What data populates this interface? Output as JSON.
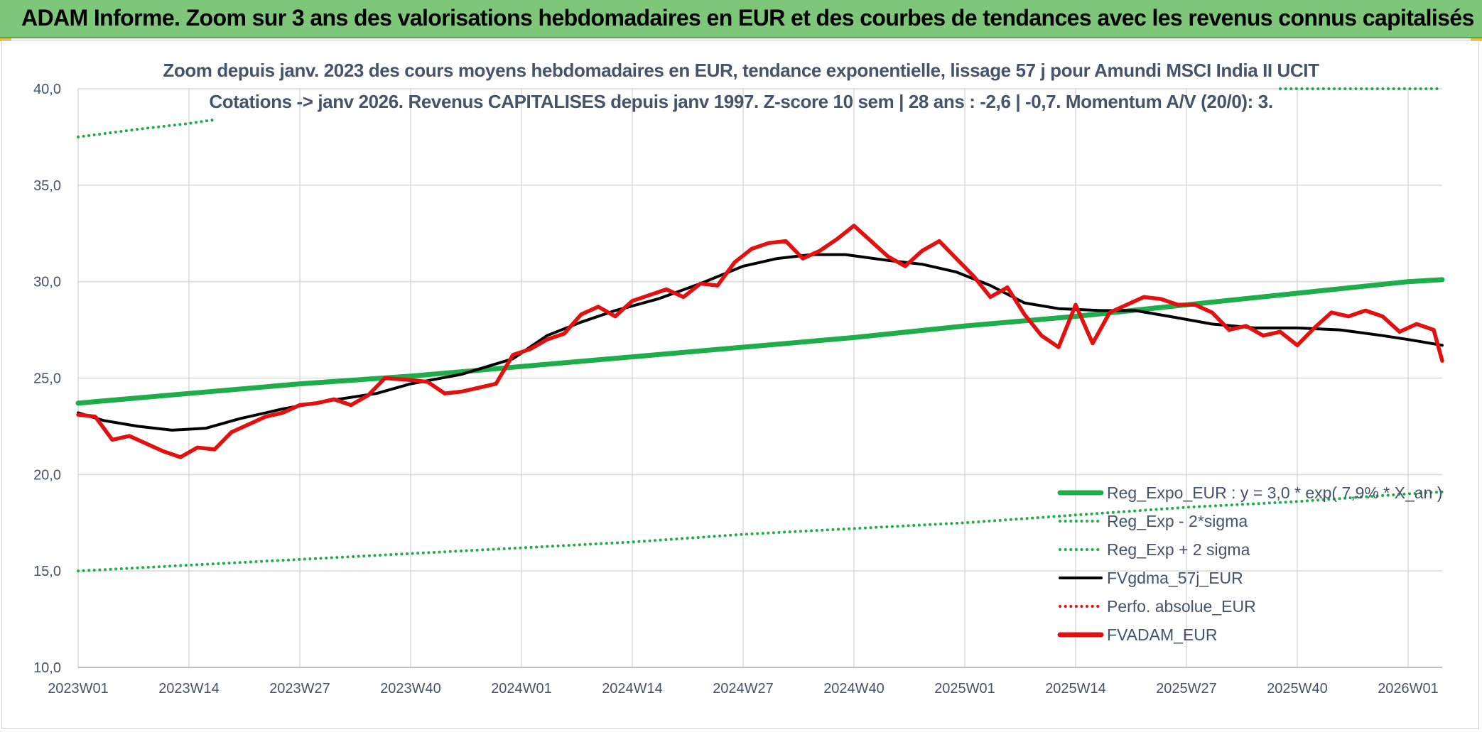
{
  "header": {
    "title": "ADAM Informe. Zoom sur 3 ans des valorisations hebdomadaires en EUR et des courbes de tendances avec les revenus connus capitalisés"
  },
  "colors": {
    "header_bg": "#7dc67a",
    "reg_expo": "#1fad4b",
    "sigma": "#1fad4b",
    "moving_avg": "#000000",
    "perfo": "#e31010",
    "price": "#e31010",
    "axis_text": "#44546a",
    "grid": "#d9d9d9"
  },
  "chart_data": {
    "type": "line",
    "title": "Zoom depuis janv. 2023 des cours moyens hebdomadaires en EUR, tendance exponentielle, lissage 57 j pour Amundi MSCI India II UCIT",
    "subtitle": "Cotations -> janv 2026. Revenus CAPITALISES depuis janv 1997. Z-score 10 sem | 28 ans : -2,6 | -0,7. Momentum A/V (20/0): 3.",
    "ylim": [
      10,
      40
    ],
    "y_ticks": [
      "10,0",
      "15,0",
      "20,0",
      "25,0",
      "30,0",
      "35,0",
      "40,0"
    ],
    "x_ticks": [
      "2023W01",
      "2023W14",
      "2023W27",
      "2023W40",
      "2024W01",
      "2024W14",
      "2024W27",
      "2024W40",
      "2025W01",
      "2025W14",
      "2025W27",
      "2025W40",
      "2026W01"
    ],
    "grid": true,
    "legend_position": "bottom-right",
    "legend": [
      {
        "label": "Reg_Expo_EUR : y = 3,0 * exp( 7,9% * X_an )",
        "style": "solid-thick",
        "color": "#1fad4b"
      },
      {
        "label": "Reg_Exp - 2*sigma",
        "style": "dotted",
        "color": "#1fad4b"
      },
      {
        "label": "Reg_Exp + 2 sigma",
        "style": "dotted",
        "color": "#1fad4b"
      },
      {
        "label": "FVgdma_57j_EUR",
        "style": "solid",
        "color": "#000000"
      },
      {
        "label": "Perfo. absolue_EUR",
        "style": "dotted",
        "color": "#e31010"
      },
      {
        "label": "FVADAM_EUR",
        "style": "solid-thick",
        "color": "#e31010"
      }
    ],
    "series": [
      {
        "name": "Reg_Expo_EUR : y = 3,0 * exp( 7,9% * X_an )",
        "x": [
          "2023W01",
          "2023W14",
          "2023W27",
          "2023W40",
          "2024W01",
          "2024W14",
          "2024W27",
          "2024W40",
          "2025W01",
          "2025W14",
          "2025W27",
          "2025W40",
          "2026W01",
          "2026W05"
        ],
        "values": [
          23.7,
          24.2,
          24.7,
          25.1,
          25.6,
          26.1,
          26.6,
          27.1,
          27.7,
          28.2,
          28.8,
          29.4,
          30.0,
          30.1
        ]
      },
      {
        "name": "Reg_Exp - 2*sigma",
        "x": [
          "2023W01",
          "2023W14",
          "2023W27",
          "2023W40",
          "2024W01",
          "2024W14",
          "2024W27",
          "2024W40",
          "2025W01",
          "2025W14",
          "2025W27",
          "2025W40",
          "2026W01",
          "2026W05"
        ],
        "values": [
          15.0,
          15.3,
          15.6,
          15.9,
          16.2,
          16.5,
          16.9,
          17.2,
          17.5,
          17.9,
          18.3,
          18.6,
          19.0,
          19.1
        ]
      },
      {
        "name": "Reg_Exp + 2 sigma",
        "x": [
          "2023W01",
          "2023W08",
          "2023W14",
          "2023W17"
        ],
        "x_cont": [
          "2025W38",
          "2026W05"
        ],
        "values": [
          37.5,
          37.9,
          38.2,
          38.4
        ],
        "values_cont": [
          40.0,
          40.0
        ]
      },
      {
        "name": "FVgdma_57j_EUR",
        "x": [
          "2023W01",
          "2023W04",
          "2023W08",
          "2023W12",
          "2023W16",
          "2023W20",
          "2023W25",
          "2023W30",
          "2023W36",
          "2023W40",
          "2023W46",
          "2023W52",
          "2024W04",
          "2024W08",
          "2024W12",
          "2024W17",
          "2024W22",
          "2024W27",
          "2024W31",
          "2024W35",
          "2024W39",
          "2024W44",
          "2024W48",
          "2024W52",
          "2025W04",
          "2025W08",
          "2025W12",
          "2025W17",
          "2025W21",
          "2025W25",
          "2025W30",
          "2025W35",
          "2025W40",
          "2025W45",
          "2025W50",
          "2026W01",
          "2026W05"
        ],
        "values": [
          23.2,
          22.8,
          22.5,
          22.3,
          22.4,
          22.9,
          23.4,
          23.8,
          24.2,
          24.7,
          25.2,
          26.0,
          27.2,
          27.9,
          28.5,
          29.1,
          29.9,
          30.8,
          31.2,
          31.4,
          31.4,
          31.1,
          30.9,
          30.5,
          29.8,
          28.9,
          28.6,
          28.5,
          28.5,
          28.2,
          27.8,
          27.6,
          27.6,
          27.5,
          27.2,
          27.0,
          26.7
        ]
      },
      {
        "name": "FVADAM_EUR",
        "x": [
          "2023W01",
          "2023W03",
          "2023W05",
          "2023W07",
          "2023W09",
          "2023W11",
          "2023W13",
          "2023W15",
          "2023W17",
          "2023W19",
          "2023W21",
          "2023W23",
          "2023W25",
          "2023W27",
          "2023W29",
          "2023W31",
          "2023W33",
          "2023W35",
          "2023W37",
          "2023W40",
          "2023W42",
          "2023W44",
          "2023W46",
          "2023W48",
          "2023W50",
          "2023W52",
          "2024W02",
          "2024W04",
          "2024W06",
          "2024W08",
          "2024W10",
          "2024W12",
          "2024W14",
          "2024W16",
          "2024W18",
          "2024W20",
          "2024W22",
          "2024W24",
          "2024W26",
          "2024W28",
          "2024W30",
          "2024W32",
          "2024W34",
          "2024W36",
          "2024W38",
          "2024W40",
          "2024W42",
          "2024W44",
          "2024W46",
          "2024W48",
          "2024W50",
          "2024W52",
          "2025W02",
          "2025W04",
          "2025W06",
          "2025W08",
          "2025W10",
          "2025W12",
          "2025W14",
          "2025W16",
          "2025W18",
          "2025W20",
          "2025W22",
          "2025W24",
          "2025W26",
          "2025W28",
          "2025W30",
          "2025W32",
          "2025W34",
          "2025W36",
          "2025W38",
          "2025W40",
          "2025W42",
          "2025W44",
          "2025W46",
          "2025W48",
          "2025W50",
          "2025W52",
          "2026W02",
          "2026W04",
          "2026W05"
        ],
        "values": [
          23.1,
          23.0,
          21.8,
          22.0,
          21.6,
          21.2,
          20.9,
          21.4,
          21.3,
          22.2,
          22.6,
          23.0,
          23.2,
          23.6,
          23.7,
          23.9,
          23.6,
          24.1,
          25.0,
          24.9,
          24.8,
          24.2,
          24.3,
          24.5,
          24.7,
          26.2,
          26.5,
          27.0,
          27.3,
          28.3,
          28.7,
          28.2,
          29.0,
          29.3,
          29.6,
          29.2,
          29.9,
          29.8,
          31.0,
          31.7,
          32.0,
          32.1,
          31.2,
          31.6,
          32.2,
          32.9,
          32.1,
          31.3,
          30.8,
          31.6,
          32.1,
          31.2,
          30.3,
          29.2,
          29.7,
          28.3,
          27.2,
          26.6,
          28.8,
          26.8,
          28.4,
          28.8,
          29.2,
          29.1,
          28.8,
          28.8,
          28.4,
          27.5,
          27.7,
          27.2,
          27.4,
          26.7,
          27.6,
          28.4,
          28.2,
          28.5,
          28.2,
          27.4,
          27.8,
          27.5,
          25.9
        ]
      }
    ]
  }
}
